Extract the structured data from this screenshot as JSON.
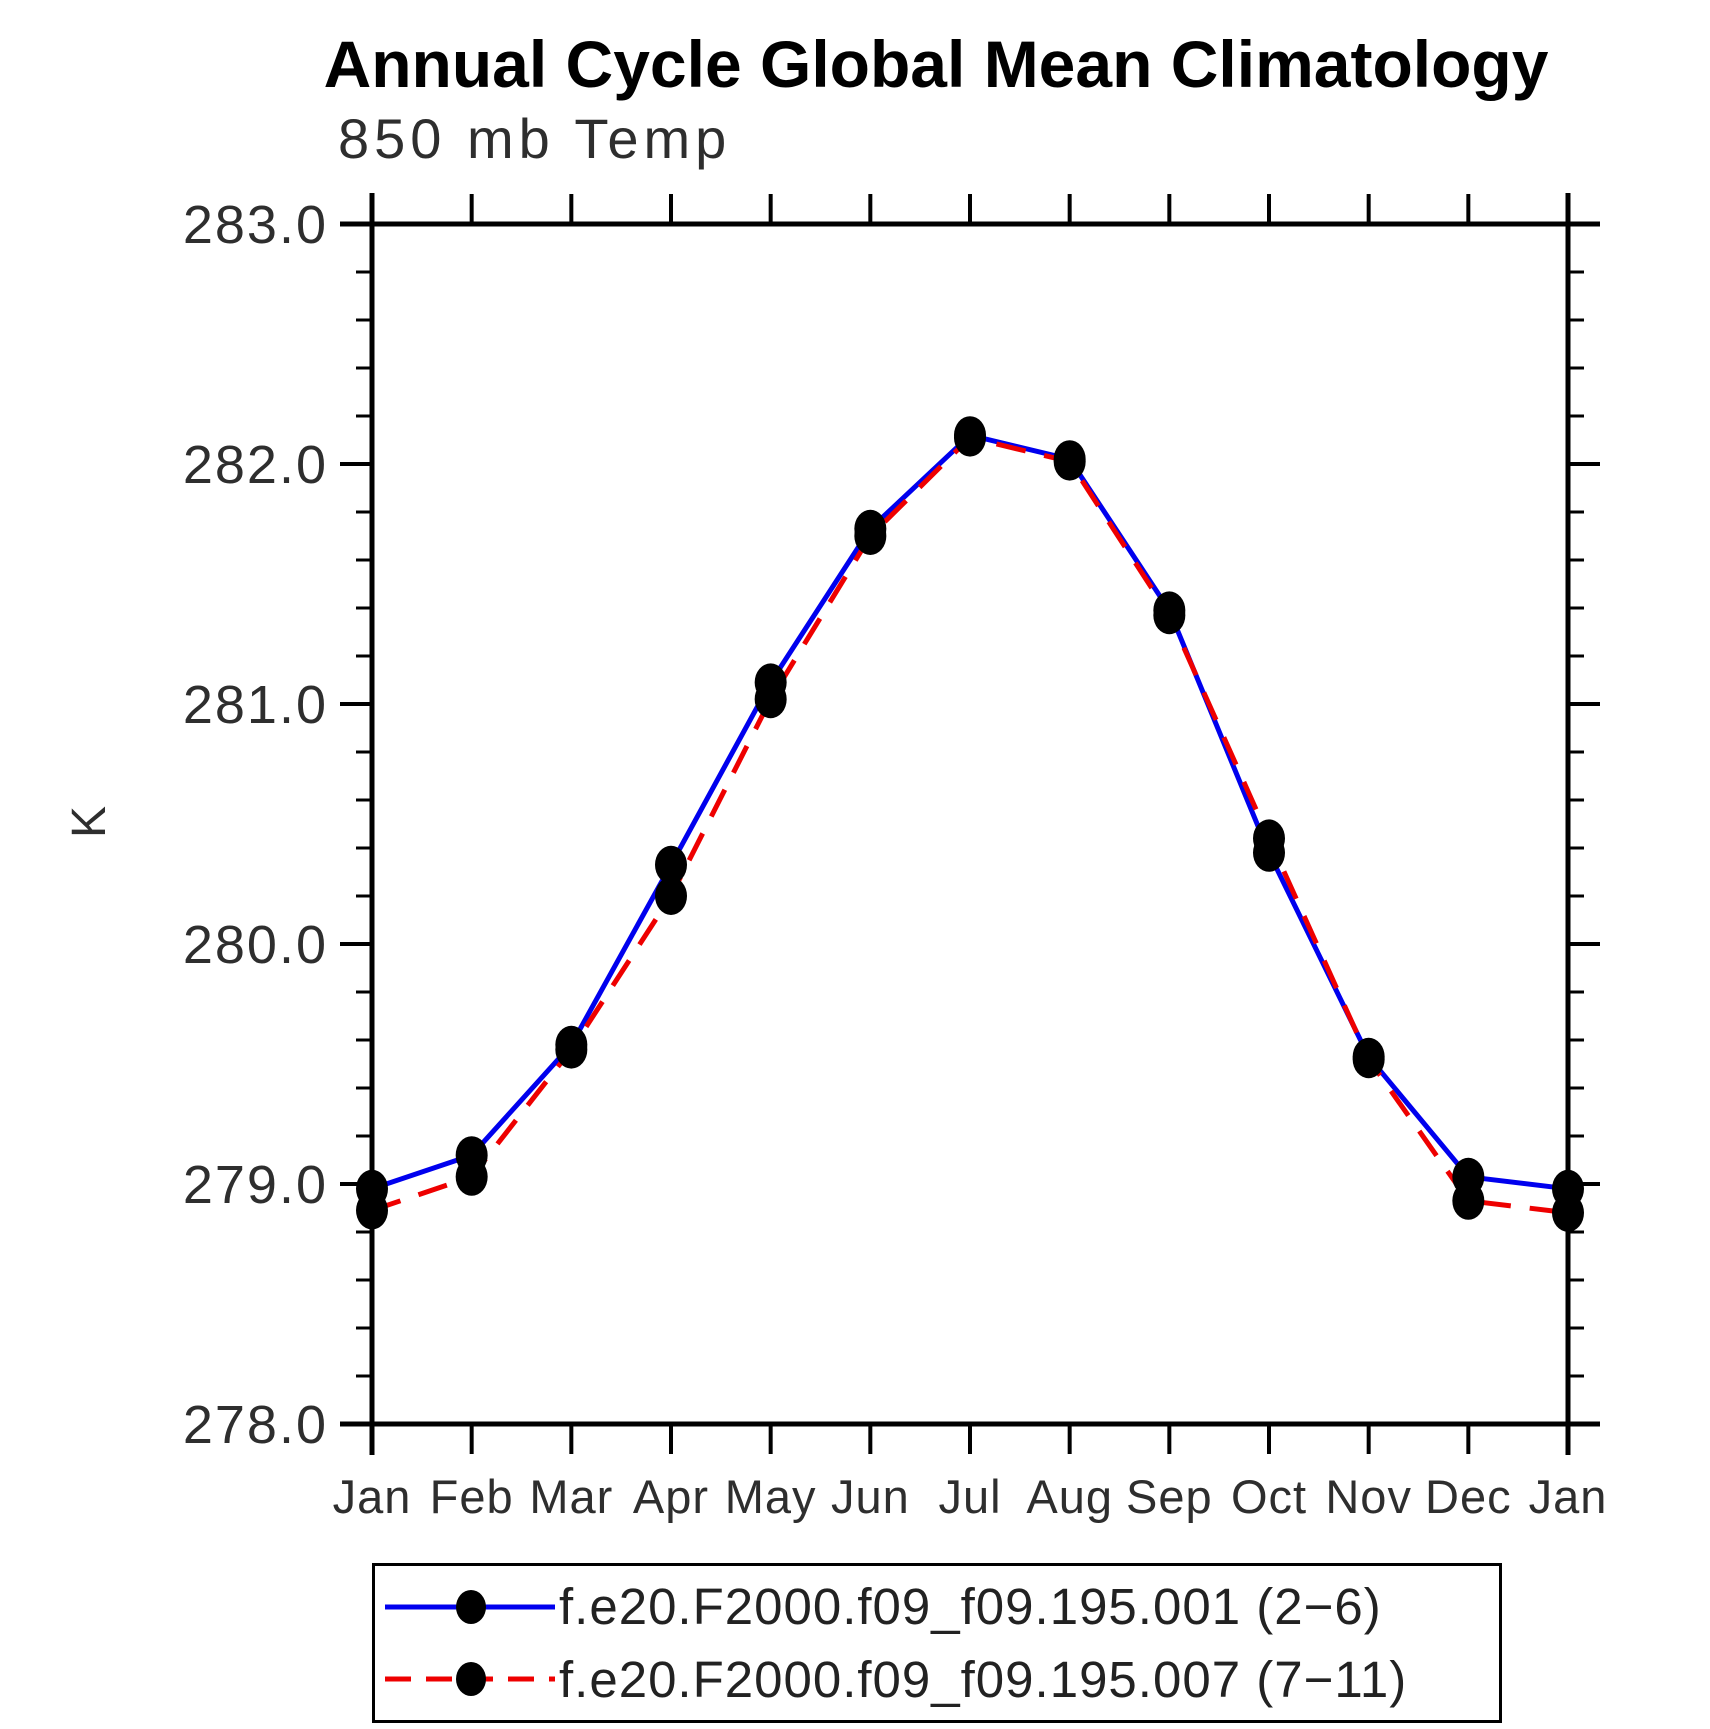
{
  "title": "Annual Cycle Global Mean Climatology",
  "subtitle": "850 mb Temp",
  "y_axis_title": "K",
  "chart_data": {
    "type": "line",
    "title": "Annual Cycle Global Mean Climatology",
    "subtitle": "850 mb Temp",
    "ylabel": "K",
    "categories": [
      "Jan",
      "Feb",
      "Mar",
      "Apr",
      "May",
      "Jun",
      "Jul",
      "Aug",
      "Sep",
      "Oct",
      "Nov",
      "Dec",
      "Jan"
    ],
    "series": [
      {
        "name": "f.e20.F2000.f09_f09.195.001 (2−6)",
        "color": "#0000ee",
        "line_style": "solid",
        "marker": "filled-circle",
        "marker_color": "#000000",
        "values": [
          278.98,
          279.12,
          279.58,
          280.33,
          281.09,
          281.73,
          282.12,
          282.02,
          281.39,
          280.38,
          279.53,
          279.03,
          278.98
        ]
      },
      {
        "name": "f.e20.F2000.f09_f09.195.007 (7−11)",
        "color": "#ee0000",
        "line_style": "dashed",
        "marker": "filled-circle",
        "marker_color": "#000000",
        "values": [
          278.89,
          279.03,
          279.56,
          280.2,
          281.02,
          281.7,
          282.11,
          282.01,
          281.37,
          280.44,
          279.52,
          278.93,
          278.88
        ]
      }
    ],
    "ylim": [
      278.0,
      283.0
    ],
    "ytick_step": 1.0,
    "yminor_step": 0.2,
    "ytick_labels": [
      "278.0",
      "279.0",
      "280.0",
      "281.0",
      "282.0",
      "283.0"
    ],
    "grid": false,
    "legend_position": "bottom",
    "axis_color": "#000000",
    "tick_label_color": "#2e2e2e"
  }
}
